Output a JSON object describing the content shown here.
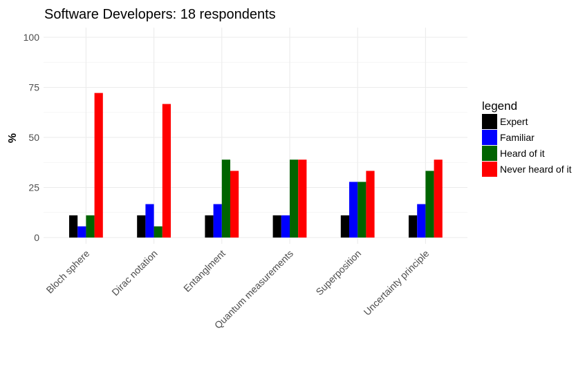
{
  "chart_data": {
    "type": "bar",
    "title": "Software Developers: 18 respondents",
    "xlabel": "",
    "ylabel": "%",
    "ylim": [
      0,
      100
    ],
    "yticks": [
      0,
      25,
      50,
      75,
      100
    ],
    "grid": true,
    "legend": {
      "title": "legend",
      "position": "right"
    },
    "categories": [
      "Bloch sphere",
      "Dirac notation",
      "Entanglment",
      "Quantum measurements",
      "Superposition",
      "Uncertainty principle"
    ],
    "series": [
      {
        "name": "Expert",
        "color": "#000000",
        "values": [
          11.1,
          11.1,
          11.1,
          11.1,
          11.1,
          11.1
        ]
      },
      {
        "name": "Familiar",
        "color": "#0000ff",
        "values": [
          5.6,
          16.7,
          16.7,
          11.1,
          27.8,
          16.7
        ]
      },
      {
        "name": "Heard of it",
        "color": "#006400",
        "values": [
          11.1,
          5.6,
          38.9,
          38.9,
          27.8,
          33.3
        ]
      },
      {
        "name": "Never heard of it",
        "color": "#ff0000",
        "values": [
          72.2,
          66.7,
          33.3,
          38.9,
          33.3,
          38.9
        ]
      }
    ]
  }
}
